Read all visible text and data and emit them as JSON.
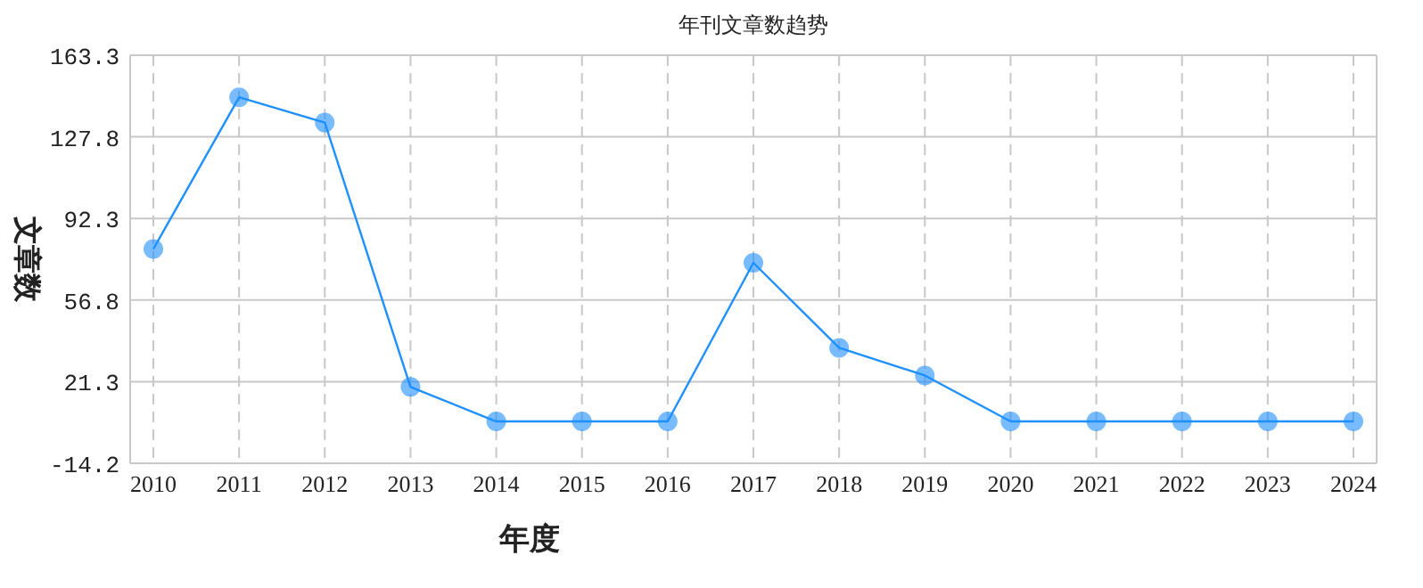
{
  "chart_data": {
    "type": "line",
    "title": "年刊文章数趋势",
    "xlabel": "年度",
    "ylabel": "文章数",
    "categories": [
      "2010",
      "2011",
      "2012",
      "2013",
      "2014",
      "2015",
      "2016",
      "2017",
      "2018",
      "2019",
      "2020",
      "2021",
      "2022",
      "2023",
      "2024"
    ],
    "series": [
      {
        "color": "#1e90ff",
        "values": [
          79,
          145,
          134,
          19,
          4,
          4,
          4,
          73,
          36,
          24,
          4,
          4,
          4,
          4,
          4
        ]
      }
    ],
    "ylim": [
      -14.2,
      163.3
    ],
    "yticks": [
      -14.2,
      21.3,
      56.8,
      92.3,
      127.8,
      163.3
    ],
    "grid": true,
    "marker": "circle",
    "line_style": "solid"
  }
}
